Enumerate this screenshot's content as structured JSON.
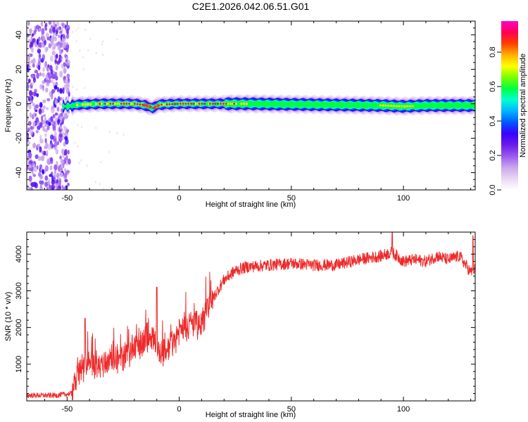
{
  "figure_title": "C2E1.2026.042.06.51.G01",
  "colors": {
    "snr_line": "#ee2a2a",
    "frame": "#000000",
    "spectrogram_scale": [
      "#ffffff",
      "#e9d7f2",
      "#c9a6ec",
      "#9b59f0",
      "#6a1de6",
      "#3a00ff",
      "#0058ff",
      "#00b4ff",
      "#00ffd2",
      "#00ff40",
      "#7aff00",
      "#ffff00",
      "#ffb000",
      "#ff4000",
      "#ff0055",
      "#ff00c8"
    ]
  },
  "chart_data": [
    {
      "type": "heatmap",
      "name": "spectrogram",
      "title": "",
      "xlabel": "Height of straight line (km)",
      "ylabel": "Frequency (Hz)",
      "xlim": [
        -68,
        132
      ],
      "ylim": [
        -50,
        48
      ],
      "xticks": [
        -50,
        0,
        50,
        100
      ],
      "yticks": [
        40,
        20,
        0,
        -20,
        -40
      ],
      "colorbar": {
        "label": "Normalized spectral amplitude",
        "range": [
          0,
          0.98
        ],
        "ticks": [
          "0.0",
          "0.2",
          "0.4",
          "0.6",
          "0.8"
        ]
      },
      "band_center_hz": [
        {
          "x": -50,
          "y": -1.5
        },
        {
          "x": -45,
          "y": -0.5
        },
        {
          "x": -35,
          "y": 0
        },
        {
          "x": -20,
          "y": 0
        },
        {
          "x": -15,
          "y": -1
        },
        {
          "x": -12,
          "y": -2.5
        },
        {
          "x": -9,
          "y": -0.5
        },
        {
          "x": 0,
          "y": 0
        },
        {
          "x": 30,
          "y": 0
        },
        {
          "x": 60,
          "y": -0.5
        },
        {
          "x": 90,
          "y": -1
        },
        {
          "x": 100,
          "y": -1.5
        },
        {
          "x": 110,
          "y": -1
        },
        {
          "x": 132,
          "y": -1
        }
      ]
    },
    {
      "type": "line",
      "name": "snr",
      "title": "",
      "xlabel": "Height of straight line (km)",
      "ylabel": "SNR (10 * v/v)",
      "xlim": [
        -68,
        132
      ],
      "ylim": [
        0,
        4600
      ],
      "xticks": [
        -50,
        0,
        50,
        100
      ],
      "yticks": [
        1000,
        2000,
        3000,
        4000
      ],
      "trend": [
        {
          "x": -68,
          "y": 150
        },
        {
          "x": -55,
          "y": 150
        },
        {
          "x": -48,
          "y": 200
        },
        {
          "x": -45,
          "y": 800
        },
        {
          "x": -40,
          "y": 950
        },
        {
          "x": -35,
          "y": 1000
        },
        {
          "x": -30,
          "y": 1150
        },
        {
          "x": -25,
          "y": 1150
        },
        {
          "x": -20,
          "y": 1450
        },
        {
          "x": -15,
          "y": 1700
        },
        {
          "x": -12,
          "y": 1750
        },
        {
          "x": -8,
          "y": 1300
        },
        {
          "x": -5,
          "y": 1400
        },
        {
          "x": 0,
          "y": 1900
        },
        {
          "x": 5,
          "y": 2100
        },
        {
          "x": 10,
          "y": 2100
        },
        {
          "x": 15,
          "y": 2800
        },
        {
          "x": 20,
          "y": 3300
        },
        {
          "x": 25,
          "y": 3550
        },
        {
          "x": 30,
          "y": 3650
        },
        {
          "x": 40,
          "y": 3700
        },
        {
          "x": 50,
          "y": 3750
        },
        {
          "x": 60,
          "y": 3700
        },
        {
          "x": 70,
          "y": 3700
        },
        {
          "x": 80,
          "y": 3850
        },
        {
          "x": 90,
          "y": 3950
        },
        {
          "x": 95,
          "y": 4050
        },
        {
          "x": 100,
          "y": 3800
        },
        {
          "x": 105,
          "y": 3850
        },
        {
          "x": 110,
          "y": 3800
        },
        {
          "x": 115,
          "y": 3950
        },
        {
          "x": 120,
          "y": 3850
        },
        {
          "x": 125,
          "y": 3950
        },
        {
          "x": 130,
          "y": 3500
        },
        {
          "x": 132,
          "y": 3600
        }
      ],
      "spikes": [
        {
          "x": -42,
          "y": 2250
        },
        {
          "x": -10,
          "y": 3100
        },
        {
          "x": 95,
          "y": 4650
        },
        {
          "x": 131,
          "y": 4500
        }
      ]
    }
  ]
}
